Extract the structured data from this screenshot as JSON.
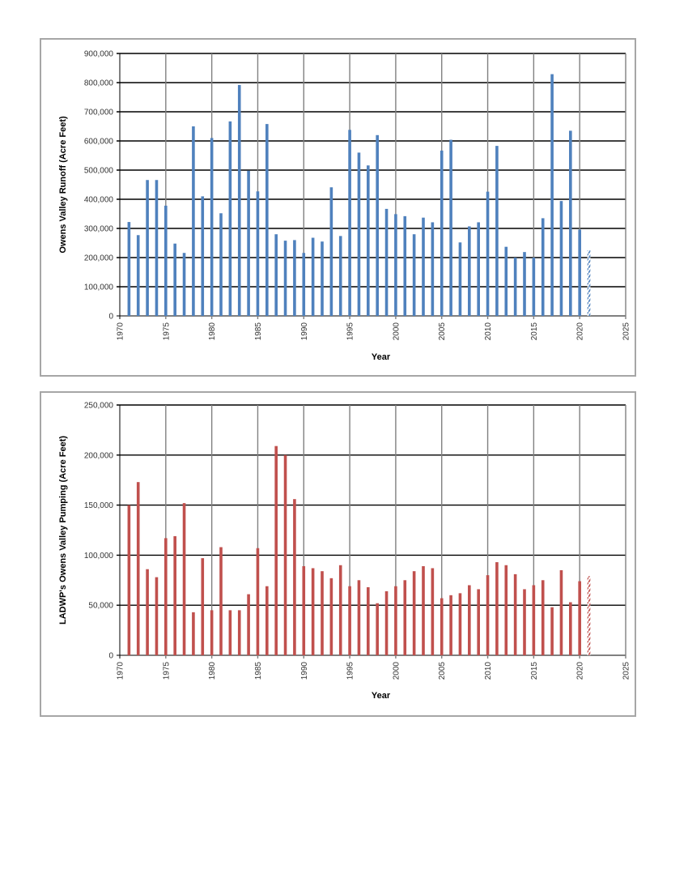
{
  "chart_data": [
    {
      "type": "bar",
      "title": "",
      "xlabel": "Year",
      "ylabel": "Owens Valley Runoff (Acre Feet)",
      "xlim": [
        1970,
        2025
      ],
      "ylim": [
        0,
        900000
      ],
      "x_ticks": [
        "1970",
        "1975",
        "1980",
        "1985",
        "1990",
        "1995",
        "2000",
        "2005",
        "2010",
        "2015",
        "2020",
        "2025"
      ],
      "y_ticks": [
        "0",
        "100,000",
        "200,000",
        "300,000",
        "400,000",
        "500,000",
        "600,000",
        "700,000",
        "800,000",
        "900,000"
      ],
      "grid": "major x and y",
      "color": "#4f81bd",
      "years": [
        1971,
        1972,
        1973,
        1974,
        1975,
        1976,
        1977,
        1978,
        1979,
        1980,
        1981,
        1982,
        1983,
        1984,
        1985,
        1986,
        1987,
        1988,
        1989,
        1990,
        1991,
        1992,
        1993,
        1994,
        1995,
        1996,
        1997,
        1998,
        1999,
        2000,
        2001,
        2002,
        2003,
        2004,
        2005,
        2006,
        2007,
        2008,
        2009,
        2010,
        2011,
        2012,
        2013,
        2014,
        2015,
        2016,
        2017,
        2018,
        2019,
        2020,
        2021
      ],
      "values": [
        322000,
        277000,
        466000,
        466000,
        378000,
        248000,
        216000,
        650000,
        410000,
        610000,
        352000,
        667000,
        792000,
        498000,
        427000,
        658000,
        280000,
        258000,
        260000,
        216000,
        268000,
        255000,
        441000,
        274000,
        638000,
        560000,
        516000,
        620000,
        367000,
        349000,
        342000,
        280000,
        337000,
        321000,
        567000,
        604000,
        252000,
        307000,
        321000,
        426000,
        583000,
        237000,
        200000,
        219000,
        200000,
        335000,
        829000,
        394000,
        635000,
        296000,
        225000
      ],
      "projected_years": [
        2021
      ]
    },
    {
      "type": "bar",
      "title": "",
      "xlabel": "Year",
      "ylabel": "LADWP's Owens Valley Pumping (Acre Feet)",
      "xlim": [
        1970,
        2025
      ],
      "ylim": [
        0,
        250000
      ],
      "x_ticks": [
        "1970",
        "1975",
        "1980",
        "1985",
        "1990",
        "1995",
        "2000",
        "2005",
        "2010",
        "2015",
        "2020",
        "2025"
      ],
      "y_ticks": [
        "0",
        "50,000",
        "100,000",
        "150,000",
        "200,000",
        "250,000"
      ],
      "grid": "major x and y",
      "color": "#c0504d",
      "years": [
        1971,
        1972,
        1973,
        1974,
        1975,
        1976,
        1977,
        1978,
        1979,
        1980,
        1981,
        1982,
        1983,
        1984,
        1985,
        1986,
        1987,
        1988,
        1989,
        1990,
        1991,
        1992,
        1993,
        1994,
        1995,
        1996,
        1997,
        1998,
        1999,
        2000,
        2001,
        2002,
        2003,
        2004,
        2005,
        2006,
        2007,
        2008,
        2009,
        2010,
        2011,
        2012,
        2013,
        2014,
        2015,
        2016,
        2017,
        2018,
        2019,
        2020,
        2021
      ],
      "values": [
        150000,
        173000,
        86000,
        78000,
        117000,
        119000,
        152000,
        43000,
        97000,
        45000,
        108000,
        45000,
        45000,
        61000,
        107000,
        69000,
        209000,
        200000,
        156000,
        89000,
        87000,
        84000,
        77000,
        90000,
        69000,
        75000,
        68000,
        52000,
        64000,
        69000,
        75000,
        84000,
        89000,
        87000,
        57000,
        60000,
        62000,
        70000,
        66000,
        80000,
        93000,
        90000,
        81000,
        66000,
        70000,
        75000,
        48000,
        85000,
        53000,
        74000,
        79000
      ],
      "projected_years": [
        2021
      ]
    }
  ]
}
